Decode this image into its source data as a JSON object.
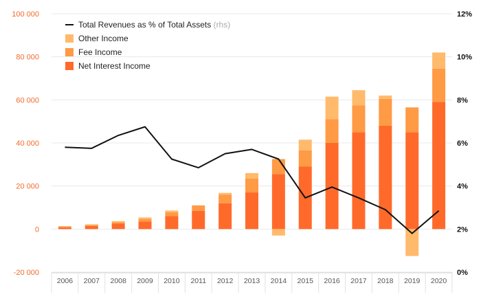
{
  "chart_data": {
    "type": "bar",
    "stacked": true,
    "categories": [
      "2006",
      "2007",
      "2008",
      "2009",
      "2010",
      "2011",
      "2012",
      "2013",
      "2014",
      "2015",
      "2016",
      "2017",
      "2018",
      "2019",
      "2020"
    ],
    "series": [
      {
        "name": "Net Interest Income",
        "color": "#ff6a2b",
        "axis": "left",
        "values": [
          800,
          1400,
          2500,
          3500,
          6000,
          8500,
          12000,
          17000,
          25500,
          29000,
          40000,
          45000,
          48000,
          45000,
          59000
        ]
      },
      {
        "name": "Fee Income",
        "color": "#ff9a45",
        "axis": "left",
        "values": [
          400,
          500,
          700,
          1200,
          1800,
          2500,
          4000,
          6500,
          7000,
          7500,
          11000,
          12500,
          12500,
          11500,
          15500
        ]
      },
      {
        "name": "Other Income",
        "color": "#ffba6b",
        "axis": "left",
        "values": [
          200,
          300,
          500,
          700,
          800,
          0,
          800,
          2500,
          -3000,
          5000,
          10500,
          7000,
          1500,
          -12500,
          7500
        ]
      },
      {
        "name": "Total Revenues as % of Total Assets",
        "suffix": "(rhs)",
        "type": "line",
        "color": "#111111",
        "axis": "right",
        "values": [
          5.8,
          5.75,
          6.35,
          6.75,
          5.25,
          4.85,
          5.5,
          5.7,
          5.25,
          3.45,
          3.95,
          3.45,
          2.9,
          1.8,
          2.85
        ]
      }
    ],
    "yleft": {
      "min": -20000,
      "max": 100000,
      "ticks": [
        "-20 000",
        "0",
        "20 000",
        "40 000",
        "60 000",
        "80 000",
        "100 000"
      ],
      "tick_values": [
        -20000,
        0,
        20000,
        40000,
        60000,
        80000,
        100000
      ]
    },
    "yright": {
      "min": 0,
      "max": 12,
      "ticks": [
        "0%",
        "2%",
        "4%",
        "6%",
        "8%",
        "10%",
        "12%"
      ],
      "tick_values": [
        0,
        2,
        4,
        6,
        8,
        10,
        12
      ]
    },
    "legend": {
      "placement": "top-left",
      "items": [
        {
          "label": "Total Revenues as % of Total Assets",
          "suffix": "(rhs)",
          "kind": "line",
          "color": "#111111"
        },
        {
          "label": "Other Income",
          "kind": "box",
          "color": "#ffba6b"
        },
        {
          "label": "Fee Income",
          "kind": "box",
          "color": "#ff9a45"
        },
        {
          "label": "Net Interest Income",
          "kind": "box",
          "color": "#ff6a2b"
        }
      ]
    },
    "grid": "horizontal",
    "colors": {
      "left_axis_text": "#f26b2a",
      "right_axis_text": "#111111",
      "grid": "#e8e8e8",
      "category_text": "#555555",
      "suffix_text": "#aaaaaa"
    }
  }
}
